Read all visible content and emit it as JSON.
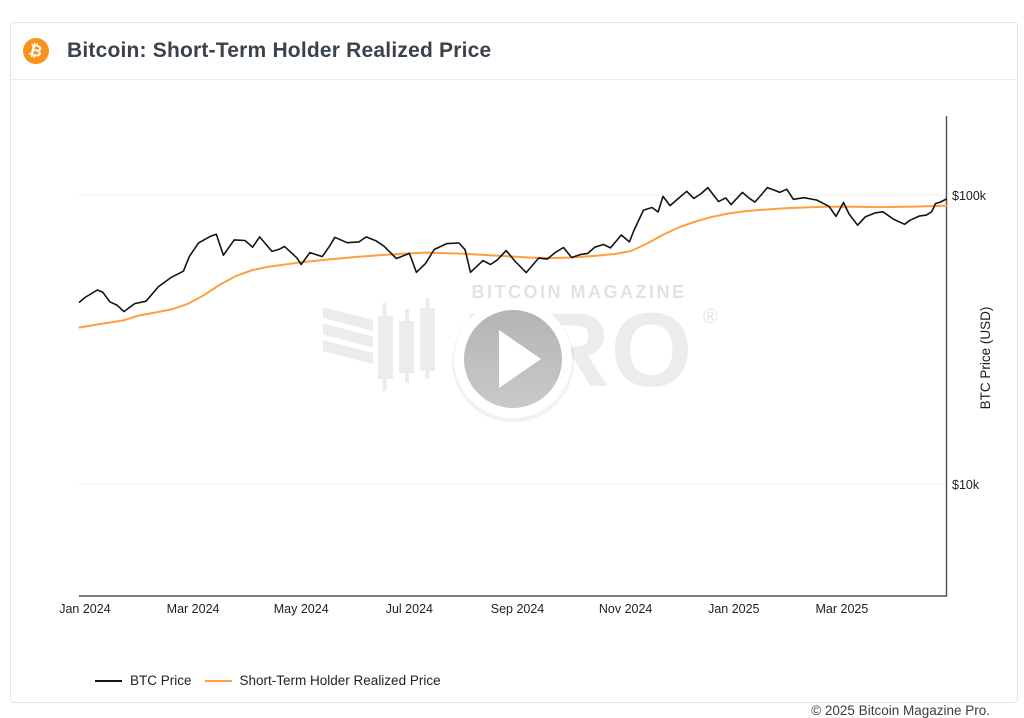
{
  "header": {
    "title": "Bitcoin: Short-Term Holder Realized Price",
    "icon_glyph": "₿",
    "brand_color": "#f7931a"
  },
  "watermark": {
    "brand_line": "BITCOIN MAGAZINE",
    "brand_word": "PRO",
    "registered": "®"
  },
  "legend": {
    "items": [
      {
        "label": "BTC Price",
        "color": "#141414"
      },
      {
        "label": "Short-Term Holder Realized Price",
        "color": "#ff9f40"
      }
    ]
  },
  "footer": {
    "copyright": "© 2025 Bitcoin Magazine Pro."
  },
  "chart_data": {
    "type": "line",
    "title": "Bitcoin: Short-Term Holder Realized Price",
    "ylabel": "BTC Price (USD)",
    "y_scale": "log",
    "ylim_usd_k": [
      4,
      195
    ],
    "grid": "horizontal-only",
    "legend_position": "bottom-left",
    "y_ticks": [
      {
        "label": "$100k",
        "value_usd_k": 100
      },
      {
        "label": "$10k",
        "value_usd_k": 10
      }
    ],
    "x_unit": "months since Jan 2024 (0 = Jan 2024, 14 = Mar 2025)",
    "x_ticks": [
      {
        "label": "Jan 2024",
        "m": 0
      },
      {
        "label": "Mar 2024",
        "m": 2
      },
      {
        "label": "May 2024",
        "m": 4
      },
      {
        "label": "Jul 2024",
        "m": 6
      },
      {
        "label": "Sep 2024",
        "m": 8
      },
      {
        "label": "Nov 2024",
        "m": 10
      },
      {
        "label": "Jan 2025",
        "m": 12
      },
      {
        "label": "Mar 2025",
        "m": 14
      }
    ],
    "series": [
      {
        "name": "BTC Price",
        "color": "#141414",
        "points_m_usdk": [
          [
            -0.1,
            42.6
          ],
          [
            0.0,
            44.2
          ],
          [
            0.23,
            46.9
          ],
          [
            0.33,
            46.1
          ],
          [
            0.46,
            42.7
          ],
          [
            0.6,
            41.5
          ],
          [
            0.72,
            39.5
          ],
          [
            0.92,
            42.1
          ],
          [
            1.13,
            42.9
          ],
          [
            1.36,
            48.2
          ],
          [
            1.59,
            51.8
          ],
          [
            1.82,
            54.5
          ],
          [
            1.93,
            61.2
          ],
          [
            2.1,
            68.3
          ],
          [
            2.33,
            72.1
          ],
          [
            2.43,
            73.1
          ],
          [
            2.56,
            61.9
          ],
          [
            2.76,
            69.9
          ],
          [
            2.96,
            69.6
          ],
          [
            3.1,
            66.0
          ],
          [
            3.23,
            71.6
          ],
          [
            3.46,
            63.8
          ],
          [
            3.6,
            65.0
          ],
          [
            3.69,
            66.4
          ],
          [
            3.92,
            60.6
          ],
          [
            4.0,
            57.5
          ],
          [
            4.16,
            63.2
          ],
          [
            4.39,
            61.2
          ],
          [
            4.52,
            66.3
          ],
          [
            4.62,
            71.4
          ],
          [
            4.85,
            68.4
          ],
          [
            5.07,
            68.8
          ],
          [
            5.2,
            71.6
          ],
          [
            5.38,
            69.5
          ],
          [
            5.53,
            66.5
          ],
          [
            5.76,
            60.3
          ],
          [
            6.0,
            62.8
          ],
          [
            6.13,
            54.0
          ],
          [
            6.3,
            58.0
          ],
          [
            6.46,
            64.8
          ],
          [
            6.69,
            67.9
          ],
          [
            6.92,
            68.2
          ],
          [
            7.03,
            64.6
          ],
          [
            7.13,
            54.0
          ],
          [
            7.36,
            59.3
          ],
          [
            7.5,
            57.5
          ],
          [
            7.62,
            59.5
          ],
          [
            7.79,
            64.2
          ],
          [
            7.95,
            59.1
          ],
          [
            8.16,
            53.9
          ],
          [
            8.39,
            60.5
          ],
          [
            8.55,
            60.0
          ],
          [
            8.7,
            63.3
          ],
          [
            8.85,
            65.8
          ],
          [
            9.0,
            60.8
          ],
          [
            9.16,
            62.2
          ],
          [
            9.3,
            62.8
          ],
          [
            9.43,
            66.0
          ],
          [
            9.59,
            67.4
          ],
          [
            9.72,
            65.6
          ],
          [
            9.92,
            72.7
          ],
          [
            10.07,
            68.8
          ],
          [
            10.16,
            75.9
          ],
          [
            10.33,
            88.7
          ],
          [
            10.49,
            90.5
          ],
          [
            10.6,
            87.3
          ],
          [
            10.69,
            98.9
          ],
          [
            10.82,
            91.9
          ],
          [
            10.95,
            96.4
          ],
          [
            11.13,
            103.0
          ],
          [
            11.26,
            97.3
          ],
          [
            11.4,
            101.2
          ],
          [
            11.52,
            106.1
          ],
          [
            11.72,
            94.9
          ],
          [
            11.85,
            97.7
          ],
          [
            11.95,
            92.6
          ],
          [
            12.16,
            102.1
          ],
          [
            12.3,
            97.0
          ],
          [
            12.39,
            94.5
          ],
          [
            12.52,
            100.7
          ],
          [
            12.62,
            106.1
          ],
          [
            12.75,
            104.0
          ],
          [
            12.85,
            102.1
          ],
          [
            12.98,
            104.7
          ],
          [
            13.1,
            96.6
          ],
          [
            13.3,
            97.9
          ],
          [
            13.53,
            96.1
          ],
          [
            13.76,
            91.4
          ],
          [
            13.89,
            84.3
          ],
          [
            14.03,
            94.2
          ],
          [
            14.13,
            86.0
          ],
          [
            14.29,
            78.6
          ],
          [
            14.43,
            84.0
          ],
          [
            14.62,
            86.8
          ],
          [
            14.76,
            87.5
          ],
          [
            14.95,
            82.5
          ],
          [
            15.16,
            79.2
          ],
          [
            15.26,
            81.8
          ],
          [
            15.43,
            84.5
          ],
          [
            15.56,
            85.2
          ],
          [
            15.66,
            87.5
          ],
          [
            15.73,
            93.4
          ],
          [
            15.82,
            94.5
          ],
          [
            15.93,
            96.8
          ]
        ]
      },
      {
        "name": "Short-Term Holder Realized Price",
        "color": "#ff9f40",
        "points_m_usdk": [
          [
            -0.1,
            34.8
          ],
          [
            0.3,
            35.8
          ],
          [
            0.7,
            36.8
          ],
          [
            1.0,
            38.3
          ],
          [
            1.3,
            39.2
          ],
          [
            1.6,
            40.2
          ],
          [
            1.9,
            42.0
          ],
          [
            2.2,
            45.0
          ],
          [
            2.5,
            49.0
          ],
          [
            2.8,
            52.5
          ],
          [
            3.1,
            55.0
          ],
          [
            3.4,
            56.5
          ],
          [
            3.7,
            57.5
          ],
          [
            4.0,
            58.5
          ],
          [
            4.5,
            59.8
          ],
          [
            5.0,
            61.0
          ],
          [
            5.5,
            62.0
          ],
          [
            6.0,
            62.8
          ],
          [
            6.3,
            63.2
          ],
          [
            6.6,
            63.0
          ],
          [
            7.0,
            62.6
          ],
          [
            7.4,
            62.0
          ],
          [
            7.8,
            61.4
          ],
          [
            8.2,
            60.8
          ],
          [
            8.6,
            60.5
          ],
          [
            9.0,
            60.8
          ],
          [
            9.4,
            61.5
          ],
          [
            9.8,
            62.5
          ],
          [
            10.1,
            64.0
          ],
          [
            10.4,
            68.0
          ],
          [
            10.7,
            73.0
          ],
          [
            11.0,
            77.5
          ],
          [
            11.3,
            81.0
          ],
          [
            11.6,
            84.0
          ],
          [
            11.9,
            86.3
          ],
          [
            12.2,
            87.8
          ],
          [
            12.5,
            88.8
          ],
          [
            12.8,
            89.6
          ],
          [
            13.1,
            90.2
          ],
          [
            13.4,
            90.7
          ],
          [
            13.7,
            91.0
          ],
          [
            14.0,
            91.2
          ],
          [
            14.3,
            91.0
          ],
          [
            14.6,
            90.8
          ],
          [
            14.9,
            90.9
          ],
          [
            15.2,
            91.0
          ],
          [
            15.5,
            91.3
          ],
          [
            15.93,
            91.8
          ]
        ]
      }
    ]
  }
}
